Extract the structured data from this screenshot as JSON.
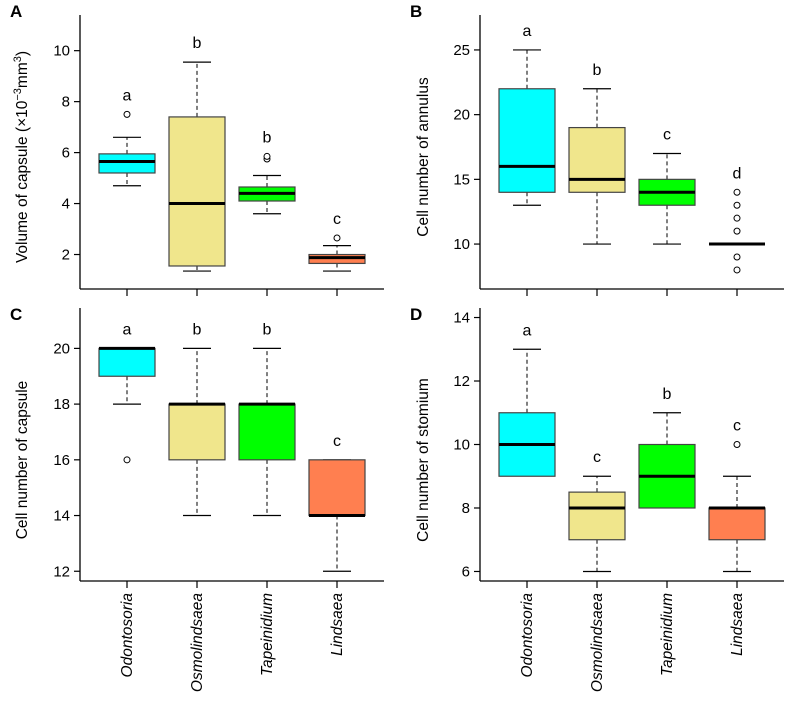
{
  "chart_data": [
    {
      "type": "box",
      "panel": "A",
      "title": "",
      "xlabel": "",
      "ylabel": "Volume of capsule (×10⁻³mm³)",
      "ylabel_parts": {
        "main": "Volume of capsule (",
        "base": "×10",
        "exp1": "−3",
        "unit": "mm",
        "exp2": "3",
        "close": ")"
      },
      "ylim": [
        1,
        11.4
      ],
      "yticks": [
        2,
        4,
        6,
        8,
        10
      ],
      "categories": [
        "Odontosoria",
        "Osmolindsaea",
        "Tapeinidium",
        "Lindsaea"
      ],
      "show_xticklabels": false,
      "boxes": [
        {
          "min": 4.7,
          "q1": 5.2,
          "median": 5.65,
          "q3": 5.95,
          "max": 6.6,
          "outliers": [
            7.5
          ],
          "letter": "a"
        },
        {
          "min": 1.35,
          "q1": 1.55,
          "median": 4.0,
          "q3": 7.4,
          "max": 9.55,
          "outliers": [],
          "letter": "b"
        },
        {
          "min": 3.6,
          "q1": 4.1,
          "median": 4.4,
          "q3": 4.65,
          "max": 5.1,
          "outliers": [
            5.75,
            5.85
          ],
          "letter": "b"
        },
        {
          "min": 1.35,
          "q1": 1.65,
          "median": 1.88,
          "q3": 2.0,
          "max": 2.35,
          "outliers": [
            2.65
          ],
          "letter": "c"
        }
      ]
    },
    {
      "type": "box",
      "panel": "B",
      "title": "",
      "xlabel": "",
      "ylabel": "Cell number of annulus",
      "ylim": [
        7.3,
        27.7
      ],
      "yticks": [
        10,
        15,
        20,
        25
      ],
      "categories": [
        "Odontosoria",
        "Osmolindsaea",
        "Tapeinidium",
        "Lindsaea"
      ],
      "show_xticklabels": false,
      "boxes": [
        {
          "min": 13,
          "q1": 14,
          "median": 16,
          "q3": 22,
          "max": 25,
          "outliers": [],
          "letter": "a"
        },
        {
          "min": 10,
          "q1": 14,
          "median": 15,
          "q3": 19,
          "max": 22,
          "outliers": [],
          "letter": "b"
        },
        {
          "min": 10,
          "q1": 13,
          "median": 14,
          "q3": 15,
          "max": 17,
          "outliers": [],
          "letter": "c"
        },
        {
          "min": 10,
          "q1": 10,
          "median": 10,
          "q3": 10,
          "max": 10,
          "outliers": [
            14,
            13,
            12,
            11,
            9,
            8
          ],
          "letter": "d"
        }
      ]
    },
    {
      "type": "box",
      "panel": "C",
      "title": "",
      "xlabel": "",
      "ylabel": "Cell number of capsule",
      "ylim": [
        11.65,
        21.45
      ],
      "yticks": [
        12,
        14,
        16,
        18,
        20
      ],
      "categories": [
        "Odontosoria",
        "Osmolindsaea",
        "Tapeinidium",
        "Lindsaea"
      ],
      "show_xticklabels": true,
      "boxes": [
        {
          "min": 18,
          "q1": 19,
          "median": 20,
          "q3": 20,
          "max": 20,
          "outliers": [
            16
          ],
          "letter": "a"
        },
        {
          "min": 14,
          "q1": 16,
          "median": 18,
          "q3": 18,
          "max": 20,
          "outliers": [],
          "letter": "b"
        },
        {
          "min": 14,
          "q1": 16,
          "median": 18,
          "q3": 18,
          "max": 20,
          "outliers": [],
          "letter": "b"
        },
        {
          "min": 12,
          "q1": 14,
          "median": 14,
          "q3": 16,
          "max": 16,
          "outliers": [],
          "letter": "c"
        }
      ]
    },
    {
      "type": "box",
      "panel": "D",
      "title": "",
      "xlabel": "",
      "ylabel": "Cell number of stomium",
      "ylim": [
        5.7,
        14.3
      ],
      "yticks": [
        6,
        8,
        10,
        12,
        14
      ],
      "categories": [
        "Odontosoria",
        "Osmolindsaea",
        "Tapeinidium",
        "Lindsaea"
      ],
      "show_xticklabels": true,
      "boxes": [
        {
          "min": 9,
          "q1": 9,
          "median": 10,
          "q3": 11,
          "max": 13,
          "outliers": [],
          "letter": "a"
        },
        {
          "min": 6,
          "q1": 7,
          "median": 8,
          "q3": 8.5,
          "max": 9,
          "outliers": [],
          "letter": "c"
        },
        {
          "min": 8,
          "q1": 8,
          "median": 9,
          "q3": 10,
          "max": 11,
          "outliers": [],
          "letter": "b"
        },
        {
          "min": 6,
          "q1": 7,
          "median": 8,
          "q3": 8,
          "max": 9,
          "outliers": [
            10
          ],
          "letter": "c"
        }
      ]
    }
  ],
  "colors": {
    "Odontosoria": "#00ffff",
    "Osmolindsaea": "#f0e68c",
    "Tapeinidium": "#00ff00",
    "Lindsaea": "#ff7f50"
  }
}
